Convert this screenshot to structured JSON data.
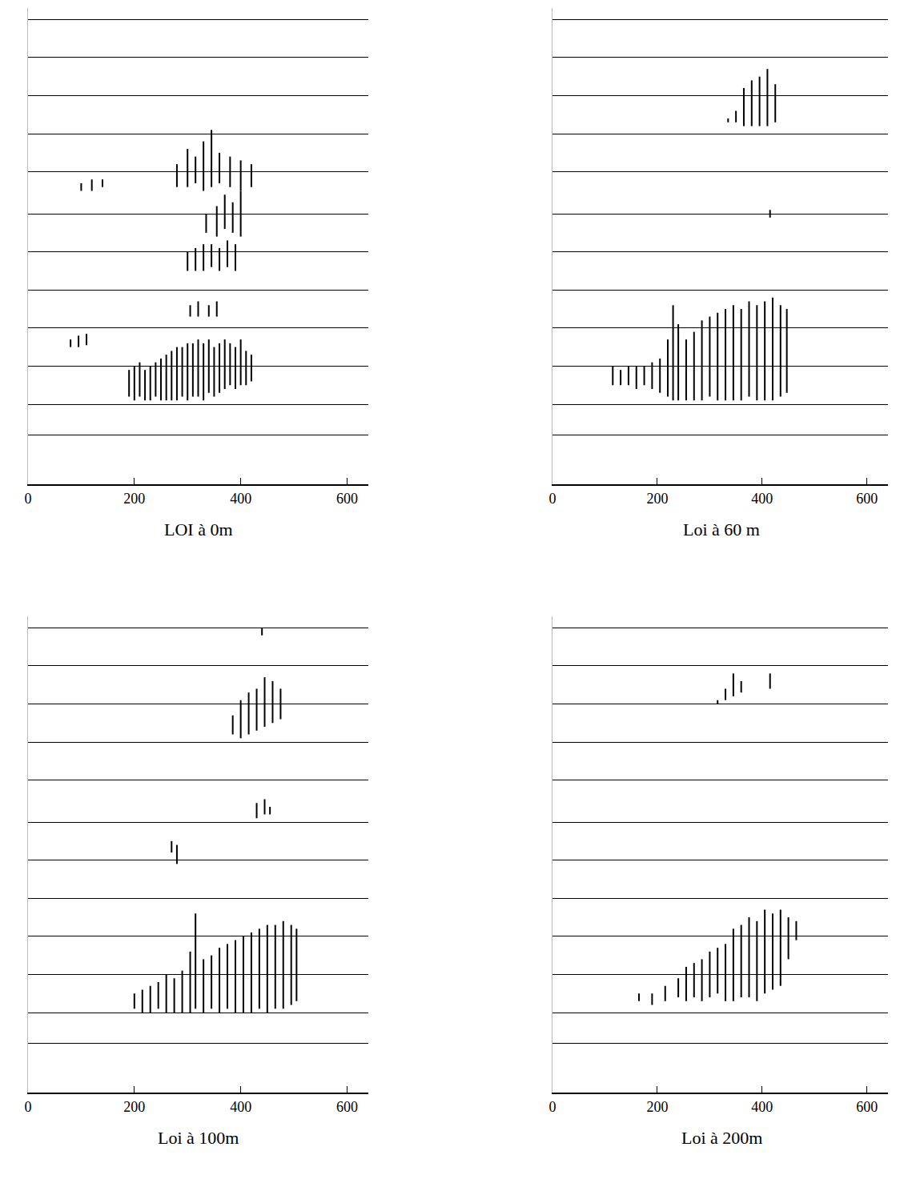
{
  "chart_data": [
    {
      "type": "segments",
      "title": "LOI à 0m",
      "color": "#000000",
      "grid": true,
      "tick_labels": "x",
      "xlim": [
        0,
        640
      ],
      "xticks": [
        0,
        200,
        400,
        600
      ],
      "ylim": [
        0,
        12.5
      ],
      "yticks": [
        1.3,
        2.1,
        3.1,
        4.1,
        5.1,
        6.1,
        7.1,
        8.2,
        9.2,
        10.2,
        11.2,
        12.2
      ],
      "x": [
        190,
        200,
        210,
        220,
        230,
        240,
        250,
        260,
        270,
        280,
        290,
        300,
        310,
        320,
        330,
        340,
        350,
        360,
        370,
        380,
        390,
        400,
        410,
        420,
        305,
        320,
        340,
        355,
        300,
        315,
        330,
        345,
        360,
        375,
        390,
        335,
        355,
        370,
        385,
        400,
        280,
        300,
        315,
        330,
        345,
        360,
        380,
        400,
        420,
        100,
        120,
        140,
        80,
        95,
        110
      ],
      "low": [
        2.3,
        2.2,
        2.3,
        2.2,
        2.2,
        2.3,
        2.2,
        2.2,
        2.2,
        2.2,
        2.3,
        2.2,
        2.3,
        2.3,
        2.2,
        2.4,
        2.3,
        2.4,
        2.5,
        2.6,
        2.5,
        2.6,
        2.6,
        2.7,
        4.4,
        4.4,
        4.4,
        4.4,
        5.6,
        5.6,
        5.6,
        5.7,
        5.6,
        5.7,
        5.6,
        6.6,
        6.5,
        6.7,
        6.6,
        6.5,
        7.8,
        7.8,
        7.9,
        7.7,
        7.8,
        7.9,
        7.8,
        7.7,
        7.8,
        7.7,
        7.7,
        7.8,
        3.6,
        3.6,
        3.65
      ],
      "high": [
        3.0,
        3.1,
        3.2,
        3.0,
        3.1,
        3.2,
        3.3,
        3.4,
        3.5,
        3.6,
        3.6,
        3.7,
        3.7,
        3.8,
        3.7,
        3.8,
        3.6,
        3.7,
        3.8,
        3.7,
        3.6,
        3.8,
        3.5,
        3.4,
        4.7,
        4.8,
        4.7,
        4.8,
        6.1,
        6.2,
        6.3,
        6.3,
        6.2,
        6.4,
        6.3,
        7.1,
        7.3,
        7.6,
        7.4,
        7.7,
        8.4,
        8.8,
        8.6,
        9.0,
        9.3,
        8.7,
        8.6,
        8.5,
        8.4,
        7.9,
        8.0,
        8.0,
        3.8,
        3.9,
        3.95
      ]
    },
    {
      "type": "segments",
      "title": "Loi à 60 m",
      "color": "#000000",
      "grid": true,
      "tick_labels": "x",
      "xlim": [
        0,
        640
      ],
      "xticks": [
        0,
        200,
        400,
        600
      ],
      "ylim": [
        0,
        12.5
      ],
      "yticks": [
        1.3,
        2.1,
        3.1,
        4.1,
        5.1,
        6.1,
        7.1,
        8.2,
        9.2,
        10.2,
        11.2,
        12.2
      ],
      "x": [
        115,
        130,
        145,
        160,
        175,
        190,
        205,
        220,
        230,
        240,
        255,
        270,
        285,
        300,
        315,
        330,
        345,
        360,
        375,
        390,
        405,
        420,
        435,
        447,
        335,
        350,
        365,
        380,
        395,
        410,
        425,
        415
      ],
      "low": [
        2.6,
        2.6,
        2.6,
        2.5,
        2.6,
        2.5,
        2.4,
        2.3,
        2.2,
        2.2,
        2.2,
        2.2,
        2.2,
        2.3,
        2.2,
        2.2,
        2.2,
        2.2,
        2.3,
        2.2,
        2.2,
        2.2,
        2.3,
        2.4,
        9.5,
        9.5,
        9.4,
        9.4,
        9.4,
        9.4,
        9.5,
        7.0
      ],
      "high": [
        3.1,
        3.0,
        3.1,
        3.1,
        3.1,
        3.2,
        3.3,
        3.8,
        4.7,
        4.2,
        3.8,
        4.0,
        4.3,
        4.4,
        4.5,
        4.6,
        4.7,
        4.6,
        4.8,
        4.7,
        4.8,
        4.9,
        4.7,
        4.6,
        9.6,
        9.8,
        10.4,
        10.6,
        10.7,
        10.9,
        10.5,
        7.2
      ]
    },
    {
      "type": "segments",
      "title": "Loi à 100m",
      "color": "#000000",
      "grid": true,
      "tick_labels": "x",
      "xlim": [
        0,
        640
      ],
      "xticks": [
        0,
        200,
        400,
        600
      ],
      "ylim": [
        0,
        12.5
      ],
      "yticks": [
        1.3,
        2.1,
        3.1,
        4.1,
        5.1,
        6.1,
        7.1,
        8.2,
        9.2,
        10.2,
        11.2,
        12.2
      ],
      "x": [
        200,
        215,
        230,
        245,
        260,
        275,
        290,
        305,
        315,
        330,
        345,
        360,
        375,
        390,
        405,
        420,
        435,
        450,
        465,
        480,
        495,
        505,
        270,
        280,
        430,
        445,
        455,
        385,
        400,
        415,
        430,
        445,
        460,
        475,
        440
      ],
      "low": [
        2.2,
        2.1,
        2.1,
        2.2,
        2.1,
        2.1,
        2.1,
        2.1,
        2.2,
        2.1,
        2.2,
        2.1,
        2.2,
        2.1,
        2.1,
        2.1,
        2.2,
        2.1,
        2.2,
        2.2,
        2.3,
        2.4,
        6.3,
        6.0,
        7.2,
        7.3,
        7.3,
        9.4,
        9.3,
        9.4,
        9.5,
        9.6,
        9.7,
        9.8,
        12.0
      ],
      "high": [
        2.6,
        2.7,
        2.8,
        2.9,
        3.1,
        3.0,
        3.2,
        3.7,
        4.7,
        3.5,
        3.6,
        3.8,
        3.9,
        4.0,
        4.1,
        4.2,
        4.3,
        4.4,
        4.4,
        4.5,
        4.4,
        4.3,
        6.6,
        6.5,
        7.6,
        7.7,
        7.5,
        9.9,
        10.3,
        10.5,
        10.6,
        10.9,
        10.8,
        10.6,
        12.2
      ]
    },
    {
      "type": "segments",
      "title": "Loi à 200m",
      "color": "#000000",
      "grid": true,
      "tick_labels": "x",
      "xlim": [
        0,
        640
      ],
      "xticks": [
        0,
        200,
        400,
        600
      ],
      "ylim": [
        0,
        12.5
      ],
      "yticks": [
        1.3,
        2.1,
        3.1,
        4.1,
        5.1,
        6.1,
        7.1,
        8.2,
        9.2,
        10.2,
        11.2,
        12.2
      ],
      "x": [
        165,
        190,
        215,
        240,
        255,
        270,
        285,
        300,
        315,
        330,
        345,
        360,
        375,
        390,
        405,
        420,
        435,
        450,
        465,
        315,
        330,
        345,
        360,
        415
      ],
      "low": [
        2.4,
        2.3,
        2.4,
        2.5,
        2.4,
        2.5,
        2.4,
        2.5,
        2.6,
        2.4,
        2.4,
        2.5,
        2.5,
        2.4,
        2.6,
        2.7,
        2.8,
        3.5,
        4.0,
        10.2,
        10.3,
        10.4,
        10.5,
        10.6
      ],
      "high": [
        2.6,
        2.6,
        2.8,
        3.0,
        3.3,
        3.4,
        3.5,
        3.7,
        3.8,
        3.9,
        4.3,
        4.4,
        4.6,
        4.5,
        4.8,
        4.7,
        4.8,
        4.6,
        4.5,
        10.3,
        10.6,
        11.0,
        10.8,
        11.0
      ]
    }
  ]
}
